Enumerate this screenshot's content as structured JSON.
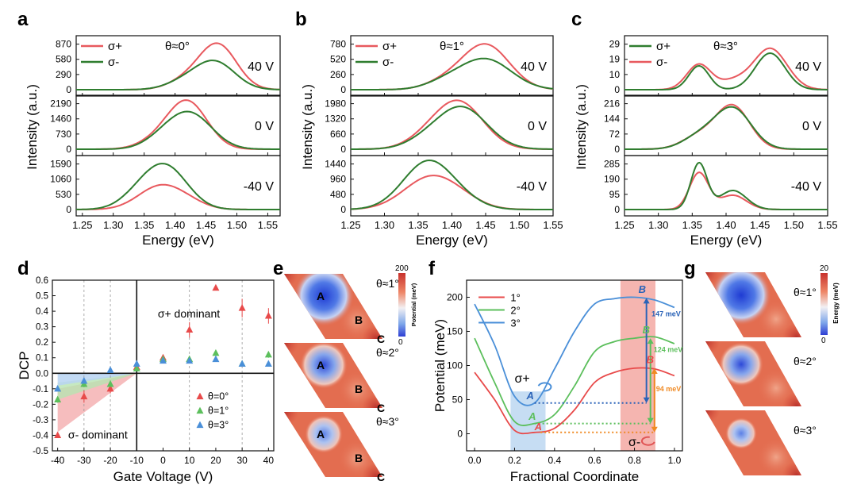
{
  "panel_letters": [
    "a",
    "b",
    "c",
    "d",
    "e",
    "f",
    "g"
  ],
  "colors": {
    "plus": "#e8595e",
    "minus": "#2f7d2f",
    "red": "#e84a4a",
    "green": "#5cbf5c",
    "blue": "#4a8fd8",
    "blueDark": "#2a63b8",
    "orange": "#f08a24",
    "text": "#1a1a1a"
  },
  "spectra_common": {
    "xlabel": "Energy (eV)",
    "ylabel": "Intensity (a.u.)"
  },
  "spectra_panels": [
    {
      "theta": "θ≈0°",
      "legend": [
        "σ+",
        "σ-"
      ],
      "legend_colors": [
        "plus",
        "minus"
      ],
      "xticks": [
        "1.25",
        "1.30",
        "1.35",
        "1.40",
        "1.45",
        "1.50",
        "1.55"
      ],
      "xrange": [
        1.24,
        1.57
      ],
      "subplots": [
        {
          "label": "40 V",
          "yticks": [
            "0",
            "290",
            "580",
            "870"
          ],
          "ymax": 1000,
          "series": [
            {
              "color": "plus",
              "peaks": [
                [
                  1.47,
                  840,
                  0.03
                ],
                [
                  1.42,
                  180,
                  0.03
                ]
              ]
            },
            {
              "color": "minus",
              "peaks": [
                [
                  1.465,
                  520,
                  0.032
                ],
                [
                  1.415,
                  140,
                  0.03
                ]
              ]
            }
          ]
        },
        {
          "label": "0 V",
          "yticks": [
            "0",
            "730",
            "1460",
            "2190"
          ],
          "ymax": 2500,
          "series": [
            {
              "color": "plus",
              "peaks": [
                [
                  1.42,
                  2250,
                  0.032
                ],
                [
                  1.37,
                  350,
                  0.03
                ]
              ]
            },
            {
              "color": "minus",
              "peaks": [
                [
                  1.425,
                  1650,
                  0.035
                ],
                [
                  1.38,
                  400,
                  0.03
                ]
              ]
            }
          ]
        },
        {
          "label": "-40 V",
          "yticks": [
            "0",
            "530",
            "1060",
            "1590"
          ],
          "ymax": 1800,
          "series": [
            {
              "color": "plus",
              "peaks": [
                [
                  1.375,
                  780,
                  0.035
                ],
                [
                  1.42,
                  200,
                  0.03
                ]
              ]
            },
            {
              "color": "minus",
              "peaks": [
                [
                  1.385,
                  1450,
                  0.035
                ],
                [
                  1.34,
                  350,
                  0.03
                ]
              ]
            }
          ]
        }
      ]
    },
    {
      "theta": "θ≈1°",
      "legend": [
        "σ+",
        "σ-"
      ],
      "legend_colors": [
        "plus",
        "minus"
      ],
      "xticks": [
        "1.25",
        "1.30",
        "1.35",
        "1.40",
        "1.45",
        "1.50",
        "1.55"
      ],
      "xrange": [
        1.25,
        1.55
      ],
      "subplots": [
        {
          "label": "40 V",
          "yticks": [
            "0",
            "260",
            "520",
            "780"
          ],
          "ymax": 900,
          "series": [
            {
              "color": "plus",
              "peaks": [
                [
                  1.45,
                  770,
                  0.035
                ],
                [
                  1.39,
                  120,
                  0.03
                ]
              ]
            },
            {
              "color": "minus",
              "peaks": [
                [
                  1.45,
                  520,
                  0.038
                ],
                [
                  1.39,
                  110,
                  0.03
                ]
              ]
            }
          ]
        },
        {
          "label": "0 V",
          "yticks": [
            "0",
            "660",
            "1320",
            "1980"
          ],
          "ymax": 2250,
          "series": [
            {
              "color": "plus",
              "peaks": [
                [
                  1.41,
                  2020,
                  0.036
                ],
                [
                  1.36,
                  300,
                  0.03
                ]
              ]
            },
            {
              "color": "minus",
              "peaks": [
                [
                  1.415,
                  1780,
                  0.037
                ],
                [
                  1.36,
                  280,
                  0.03
                ]
              ]
            }
          ]
        },
        {
          "label": "-40 V",
          "yticks": [
            "0",
            "480",
            "960",
            "1440"
          ],
          "ymax": 1650,
          "series": [
            {
              "color": "plus",
              "peaks": [
                [
                  1.37,
                  1040,
                  0.04
                ],
                [
                  1.42,
                  120,
                  0.03
                ]
              ]
            },
            {
              "color": "minus",
              "peaks": [
                [
                  1.365,
                  1520,
                  0.037
                ],
                [
                  1.42,
                  150,
                  0.03
                ]
              ]
            }
          ]
        }
      ]
    },
    {
      "theta": "θ≈3°",
      "legend": [
        "σ+",
        "σ-"
      ],
      "legend_colors": [
        "minus",
        "plus"
      ],
      "xticks": [
        "1.25",
        "1.30",
        "1.35",
        "1.40",
        "1.45",
        "1.50",
        "1.55"
      ],
      "xrange": [
        1.25,
        1.55
      ],
      "subplots": [
        {
          "label": "40 V",
          "yticks": [
            "0",
            "10",
            "19",
            "29"
          ],
          "ymax": 33,
          "series": [
            {
              "color": "plus",
              "peaks": [
                [
                  1.36,
                  16,
                  0.018
                ],
                [
                  1.465,
                  26,
                  0.025
                ],
                [
                  1.41,
                  5,
                  0.02
                ]
              ]
            },
            {
              "color": "minus",
              "peaks": [
                [
                  1.36,
                  15,
                  0.015
                ],
                [
                  1.465,
                  23,
                  0.022
                ]
              ]
            }
          ]
        },
        {
          "label": "0 V",
          "yticks": [
            "0",
            "72",
            "144",
            "216"
          ],
          "ymax": 245,
          "series": [
            {
              "color": "plus",
              "peaks": [
                [
                  1.41,
                  200,
                  0.025
                ],
                [
                  1.36,
                  60,
                  0.025
                ]
              ]
            },
            {
              "color": "minus",
              "peaks": [
                [
                  1.41,
                  190,
                  0.027
                ],
                [
                  1.36,
                  55,
                  0.025
                ]
              ]
            }
          ]
        },
        {
          "label": "-40 V",
          "yticks": [
            "0",
            "95",
            "190",
            "285"
          ],
          "ymax": 330,
          "series": [
            {
              "color": "plus",
              "peaks": [
                [
                  1.36,
                  230,
                  0.014
                ],
                [
                  1.41,
                  90,
                  0.02
                ]
              ]
            },
            {
              "color": "minus",
              "peaks": [
                [
                  1.36,
                  290,
                  0.012
                ],
                [
                  1.41,
                  120,
                  0.02
                ]
              ]
            }
          ]
        }
      ]
    }
  ],
  "chart_data": [
    {
      "type": "scatter",
      "panel": "d",
      "xlabel": "Gate Voltage (V)",
      "ylabel": "DCP",
      "xlim": [
        -42,
        42
      ],
      "ylim": [
        -0.5,
        0.6
      ],
      "xticks": [
        "-40",
        "-30",
        "-20",
        "-10",
        "0",
        "10",
        "20",
        "30",
        "40"
      ],
      "yticks": [
        "-0.5",
        "-0.4",
        "-0.3",
        "-0.2",
        "-0.1",
        "0.0",
        "0.1",
        "0.2",
        "0.3",
        "0.4",
        "0.5",
        "0.6"
      ],
      "x": [
        -40,
        -30,
        -20,
        -10,
        0,
        10,
        20,
        30,
        40
      ],
      "series": [
        {
          "name": "θ=0°",
          "color": "#e84a4a",
          "values": [
            -0.4,
            -0.15,
            -0.1,
            0.04,
            0.1,
            0.28,
            0.55,
            0.42,
            0.37
          ],
          "err": [
            0.01,
            0.04,
            0.03,
            0.01,
            0.02,
            0.05,
            0.01,
            0.06,
            0.05
          ]
        },
        {
          "name": "θ=1°",
          "color": "#5cbf5c",
          "values": [
            -0.17,
            -0.07,
            -0.07,
            0.03,
            0.09,
            0.09,
            0.13,
            0.06,
            0.12
          ],
          "err": [
            0.02,
            0.02,
            0.01,
            0.01,
            0.01,
            0.01,
            0.01,
            0.01,
            0.02
          ]
        },
        {
          "name": "θ=3°",
          "color": "#4a8fd8",
          "values": [
            -0.1,
            -0.05,
            0.02,
            0.06,
            0.08,
            0.08,
            0.09,
            0.06,
            0.06
          ],
          "err": [
            0.01,
            0.01,
            0.01,
            0.01,
            0.01,
            0.01,
            0.01,
            0.01,
            0.01
          ]
        }
      ],
      "annotations": {
        "plus": "σ+ dominant",
        "minus": "σ- dominant"
      }
    },
    {
      "type": "line",
      "panel": "f",
      "xlabel": "Fractional Coordinate",
      "ylabel": "Potential (meV)",
      "xlim": [
        -0.04,
        1.04
      ],
      "ylim": [
        -25,
        225
      ],
      "xticks": [
        "0.0",
        "0.2",
        "0.4",
        "0.6",
        "0.8",
        "1.0"
      ],
      "yticks": [
        "0",
        "50",
        "100",
        "150",
        "200"
      ],
      "x": [
        0.0,
        0.1,
        0.2,
        0.3,
        0.4,
        0.5,
        0.6,
        0.7,
        0.8,
        0.9,
        1.0
      ],
      "series": [
        {
          "name": "1°",
          "color": "#e84a4a",
          "values": [
            90,
            50,
            5,
            2,
            8,
            35,
            75,
            90,
            96,
            95,
            85
          ]
        },
        {
          "name": "2°",
          "color": "#5cbf5c",
          "values": [
            140,
            75,
            18,
            15,
            28,
            70,
            120,
            135,
            140,
            142,
            132
          ]
        },
        {
          "name": "3°",
          "color": "#4a8fd8",
          "values": [
            190,
            130,
            55,
            45,
            95,
            150,
            190,
            198,
            200,
            196,
            185
          ]
        }
      ],
      "energy_labels": [
        "147 meV",
        "124 meV",
        "94 meV"
      ],
      "point_labels": [
        "A",
        "B"
      ],
      "spin_labels": [
        "σ+",
        "σ-"
      ]
    }
  ],
  "maps": {
    "e": {
      "thetas": [
        "θ≈1°",
        "θ≈2°",
        "θ≈3°"
      ],
      "cb_title": "Potential (meV)",
      "cb_max": "200",
      "cb_min": "0",
      "labels": [
        "A",
        "B",
        "C"
      ]
    },
    "g": {
      "thetas": [
        "θ≈1°",
        "θ≈2°",
        "θ≈3°"
      ],
      "cb_title": "Energy (meV)",
      "cb_max": "20",
      "cb_min": "0"
    }
  }
}
